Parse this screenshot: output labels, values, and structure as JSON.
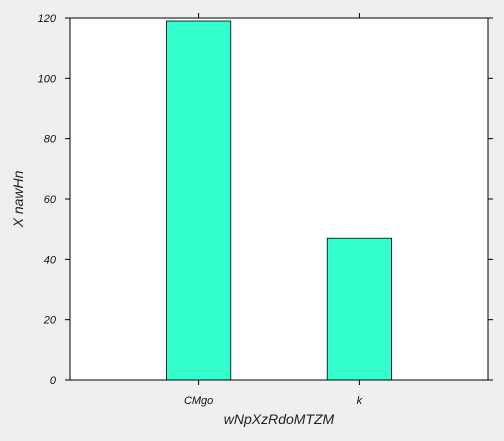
{
  "chart_data": {
    "type": "bar",
    "categories": [
      "CMgo",
      "k"
    ],
    "values": [
      119,
      47
    ],
    "xlabel": "wNpXzRdoMTZM",
    "ylabel": "X nawHn",
    "ylim": [
      0,
      120
    ],
    "yticks": [
      0,
      20,
      40,
      60,
      80,
      100,
      120
    ],
    "grid": false,
    "legend": "none",
    "colors": {
      "bar_fill": "#33ffcc",
      "bar_stroke": "#000000",
      "plot_background": "#ffffff",
      "figure_background": "#efefef",
      "axis": "#000000"
    }
  }
}
